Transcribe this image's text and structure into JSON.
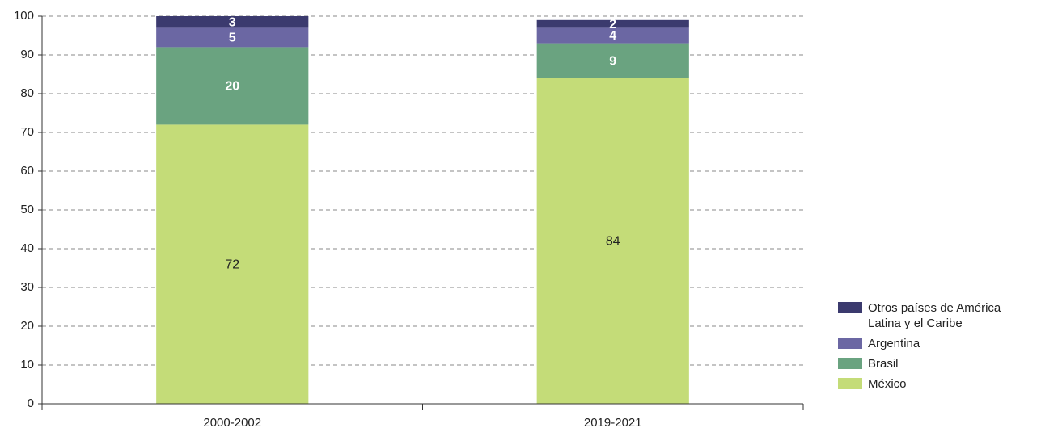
{
  "chart_data": {
    "type": "stacked_bar",
    "categories": [
      "2000-2002",
      "2019-2021"
    ],
    "series": [
      {
        "name": "México",
        "color": "#c4dc78",
        "values": [
          72,
          84
        ]
      },
      {
        "name": "Brasil",
        "color": "#6aa380",
        "values": [
          20,
          9
        ]
      },
      {
        "name": "Argentina",
        "color": "#6b67a3",
        "values": [
          5,
          4
        ]
      },
      {
        "name": "Otros países de América Latina y el Caribe",
        "color": "#3b3a6e",
        "values": [
          3,
          2
        ]
      }
    ],
    "ylim": [
      0,
      100
    ],
    "yticks": [
      0,
      10,
      20,
      30,
      40,
      50,
      60,
      70,
      80,
      90,
      100
    ],
    "grid": true,
    "legend": "right"
  }
}
